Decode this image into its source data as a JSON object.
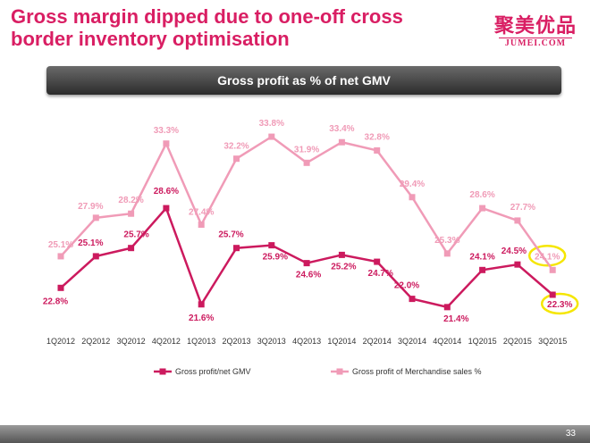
{
  "slide": {
    "title_line1": "Gross margin dipped due to one-off cross",
    "title_line2": "border inventory optimisation",
    "logo_cn": "聚美优品",
    "logo_en": "JUMEI.COM",
    "banner": "Gross profit as % of net GMV",
    "page_number": "33"
  },
  "colors": {
    "title": "#d91e63",
    "series_primary": "#cc1a5e",
    "series_secondary": "#f09bb7",
    "highlight_circle": "#f5e600"
  },
  "chart_data": {
    "type": "line",
    "categories": [
      "1Q2012",
      "2Q2012",
      "3Q2012",
      "4Q2012",
      "1Q2013",
      "2Q2013",
      "3Q2013",
      "4Q2013",
      "1Q2014",
      "2Q2014",
      "3Q2014",
      "4Q2014",
      "1Q2015",
      "2Q2015",
      "3Q2015"
    ],
    "series": [
      {
        "name": "Gross profit/net GMV",
        "values": [
          22.8,
          25.1,
          25.7,
          28.6,
          21.6,
          25.7,
          25.9,
          24.6,
          25.2,
          24.7,
          22.0,
          21.4,
          24.1,
          24.5,
          22.3
        ],
        "labels": [
          "22.8%",
          "25.1%",
          "25.7%",
          "28.6%",
          "21.6%",
          "25.7%",
          "25.9%",
          "24.6%",
          "25.2%",
          "24.7%",
          "22.0%",
          "21.4%",
          "24.1%",
          "24.5%",
          "22.3%"
        ]
      },
      {
        "name": "Gross profit of Merchandise sales %",
        "values": [
          25.1,
          27.9,
          28.2,
          33.3,
          27.4,
          32.2,
          33.8,
          31.9,
          33.4,
          32.8,
          29.4,
          25.3,
          28.6,
          27.7,
          24.1
        ],
        "labels": [
          "25.1%",
          "27.9%",
          "28.2%",
          "33.3%",
          "27.4%",
          "32.2%",
          "33.8%",
          "31.9%",
          "33.4%",
          "32.8%",
          "29.4%",
          "25.3%",
          "28.6%",
          "27.7%",
          "24.1%"
        ]
      }
    ],
    "highlighted_points": [
      "3Q2015"
    ],
    "title": "Gross profit as % of net GMV",
    "xlabel": "",
    "ylabel": "",
    "legend_position": "bottom",
    "grid": false
  }
}
